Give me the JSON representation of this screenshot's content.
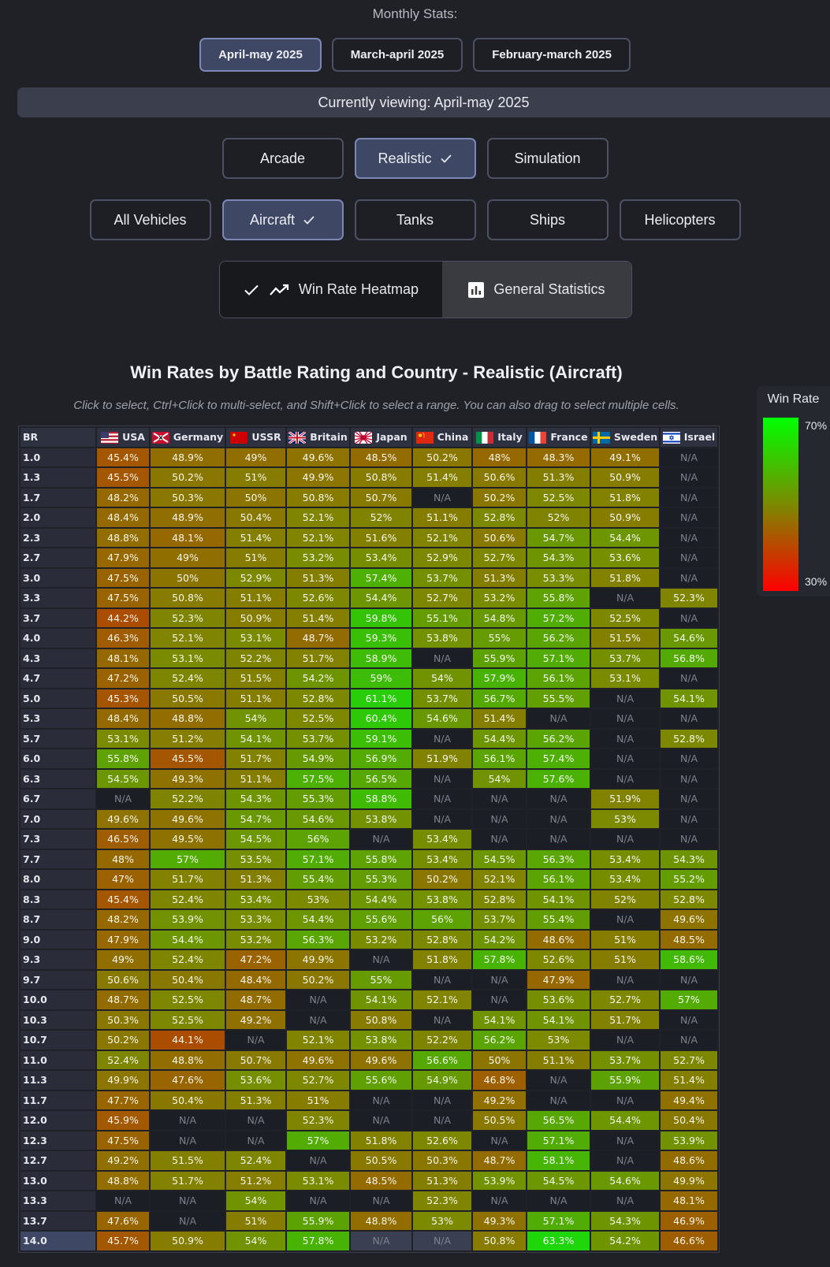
{
  "monthly": {
    "title": "Monthly Stats:",
    "buttons": [
      "April-may 2025",
      "March-april 2025",
      "February-march 2025"
    ],
    "active": 0
  },
  "viewing": "Currently viewing: April-may 2025",
  "modes": {
    "items": [
      "Arcade",
      "Realistic",
      "Simulation"
    ],
    "active": 1
  },
  "vehicle_types": {
    "items": [
      "All Vehicles",
      "Aircraft",
      "Tanks",
      "Ships",
      "Helicopters"
    ],
    "active": 1
  },
  "views": {
    "heatmap": "Win Rate Heatmap",
    "general": "General Statistics"
  },
  "chart_title": "Win Rates by Battle Rating and Country - Realistic (Aircraft)",
  "hint": "Click to select, Ctrl+Click to multi-select, and Shift+Click to select a range. You can also drag to select multiple cells.",
  "legend": {
    "title": "Win Rate",
    "max": "70%",
    "min": "30%"
  },
  "colors": {
    "accent": "#3e4763",
    "low": "#ff0000",
    "mid": "#7b8a00",
    "high": "#00ff00"
  },
  "chart_data": {
    "type": "heatmap",
    "row_header": "BR",
    "countries": [
      "USA",
      "Germany",
      "USSR",
      "Britain",
      "Japan",
      "China",
      "Italy",
      "France",
      "Sweden",
      "Israel"
    ],
    "flags": [
      "us-flag-icon",
      "germany-flag-icon",
      "ussr-flag-icon",
      "uk-flag-icon",
      "japan-flag-icon",
      "china-flag-icon",
      "italy-flag-icon",
      "france-flag-icon",
      "sweden-flag-icon",
      "israel-flag-icon"
    ],
    "scale": [
      30,
      70
    ],
    "rows": [
      {
        "br": "1.0",
        "values": [
          45.4,
          48.9,
          49,
          49.6,
          48.5,
          50.2,
          48,
          48.3,
          49.1,
          null
        ]
      },
      {
        "br": "1.3",
        "values": [
          45.5,
          50.2,
          51,
          49.9,
          50.8,
          51.4,
          50.6,
          51.3,
          50.9,
          null
        ]
      },
      {
        "br": "1.7",
        "values": [
          48.2,
          50.3,
          50,
          50.8,
          50.7,
          null,
          50.2,
          52.5,
          51.8,
          null
        ]
      },
      {
        "br": "2.0",
        "values": [
          48.4,
          48.9,
          50.4,
          52.1,
          52,
          51.1,
          52.8,
          52,
          50.9,
          null
        ]
      },
      {
        "br": "2.3",
        "values": [
          48.8,
          48.1,
          51.4,
          52.1,
          51.6,
          52.1,
          50.6,
          54.7,
          54.4,
          null
        ]
      },
      {
        "br": "2.7",
        "values": [
          47.9,
          49,
          51,
          53.2,
          53.4,
          52.9,
          52.7,
          54.3,
          53.6,
          null
        ]
      },
      {
        "br": "3.0",
        "values": [
          47.5,
          50,
          52.9,
          51.3,
          57.4,
          53.7,
          51.3,
          53.3,
          51.8,
          null
        ]
      },
      {
        "br": "3.3",
        "values": [
          47.5,
          50.8,
          51.1,
          52.6,
          54.4,
          52.7,
          53.2,
          55.8,
          null,
          52.3
        ]
      },
      {
        "br": "3.7",
        "values": [
          44.2,
          52.3,
          50.9,
          51.4,
          59.8,
          55.1,
          54.8,
          57.2,
          52.5,
          null
        ]
      },
      {
        "br": "4.0",
        "values": [
          46.3,
          52.1,
          53.1,
          48.7,
          59.3,
          53.8,
          55,
          56.2,
          51.5,
          54.6
        ]
      },
      {
        "br": "4.3",
        "values": [
          48.1,
          53.1,
          52.2,
          51.7,
          58.9,
          null,
          55.9,
          57.1,
          53.7,
          56.8
        ]
      },
      {
        "br": "4.7",
        "values": [
          47.2,
          52.4,
          51.5,
          54.2,
          59,
          54,
          57.9,
          56.1,
          53.1,
          null
        ]
      },
      {
        "br": "5.0",
        "values": [
          45.3,
          50.5,
          51.1,
          52.8,
          61.1,
          53.7,
          56.7,
          55.5,
          null,
          54.1
        ]
      },
      {
        "br": "5.3",
        "values": [
          48.4,
          48.8,
          54,
          52.5,
          60.4,
          54.6,
          51.4,
          null,
          null,
          null
        ]
      },
      {
        "br": "5.7",
        "values": [
          53.1,
          51.2,
          54.1,
          53.7,
          59.1,
          null,
          54.4,
          56.2,
          null,
          52.8
        ]
      },
      {
        "br": "6.0",
        "values": [
          55.8,
          45.5,
          51.7,
          54.9,
          56.9,
          51.9,
          56.1,
          57.4,
          null,
          null
        ]
      },
      {
        "br": "6.3",
        "values": [
          54.5,
          49.3,
          51.1,
          57.5,
          56.5,
          null,
          54,
          57.6,
          null,
          null
        ]
      },
      {
        "br": "6.7",
        "values": [
          null,
          52.2,
          54.3,
          55.3,
          58.8,
          null,
          null,
          null,
          51.9,
          null
        ]
      },
      {
        "br": "7.0",
        "values": [
          49.6,
          49.6,
          54.7,
          54.6,
          53.8,
          null,
          null,
          null,
          53,
          null
        ]
      },
      {
        "br": "7.3",
        "values": [
          46.5,
          49.5,
          54.5,
          56,
          null,
          53.4,
          null,
          null,
          null,
          null
        ]
      },
      {
        "br": "7.7",
        "values": [
          48,
          57,
          53.5,
          57.1,
          55.8,
          53.4,
          54.5,
          56.3,
          53.4,
          54.3
        ]
      },
      {
        "br": "8.0",
        "values": [
          47,
          51.7,
          51.3,
          55.4,
          55.3,
          50.2,
          52.1,
          56.1,
          53.4,
          55.2
        ]
      },
      {
        "br": "8.3",
        "values": [
          45.4,
          52.4,
          53.4,
          53,
          54.4,
          53.8,
          52.8,
          54.1,
          52,
          52.8
        ]
      },
      {
        "br": "8.7",
        "values": [
          48.2,
          53.9,
          53.3,
          54.4,
          55.6,
          56,
          53.7,
          55.4,
          null,
          49.6
        ]
      },
      {
        "br": "9.0",
        "values": [
          47.9,
          54.4,
          53.2,
          56.3,
          53.2,
          52.8,
          54.2,
          48.6,
          51,
          48.5
        ]
      },
      {
        "br": "9.3",
        "values": [
          49,
          52.4,
          47.2,
          49.9,
          null,
          51.8,
          57.8,
          52.6,
          51,
          58.6
        ]
      },
      {
        "br": "9.7",
        "values": [
          50.6,
          50.4,
          48.4,
          50.2,
          55,
          null,
          null,
          47.9,
          null,
          null
        ]
      },
      {
        "br": "10.0",
        "values": [
          48.7,
          52.5,
          48.7,
          null,
          54.1,
          52.1,
          null,
          53.6,
          52.7,
          57
        ]
      },
      {
        "br": "10.3",
        "values": [
          50.3,
          52.5,
          49.2,
          null,
          50.8,
          null,
          54.1,
          54.1,
          51.7,
          null
        ]
      },
      {
        "br": "10.7",
        "values": [
          50.2,
          44.1,
          null,
          52.1,
          53.8,
          52.2,
          56.2,
          53,
          null,
          null
        ]
      },
      {
        "br": "11.0",
        "values": [
          52.4,
          48.8,
          50.7,
          49.6,
          49.6,
          56.6,
          50,
          51.1,
          53.7,
          52.7
        ]
      },
      {
        "br": "11.3",
        "values": [
          49.9,
          47.6,
          53.6,
          52.7,
          55.6,
          54.9,
          46.8,
          null,
          55.9,
          51.4
        ]
      },
      {
        "br": "11.7",
        "values": [
          47.7,
          50.4,
          51.3,
          51,
          null,
          null,
          49.2,
          null,
          null,
          49.4
        ]
      },
      {
        "br": "12.0",
        "values": [
          45.9,
          null,
          null,
          52.3,
          null,
          null,
          50.5,
          56.5,
          54.4,
          50.4
        ]
      },
      {
        "br": "12.3",
        "values": [
          47.5,
          null,
          null,
          57,
          51.8,
          52.6,
          null,
          57.1,
          null,
          53.9
        ]
      },
      {
        "br": "12.7",
        "values": [
          49.2,
          51.5,
          52.4,
          null,
          50.5,
          50.3,
          48.7,
          58.1,
          null,
          48.6
        ]
      },
      {
        "br": "13.0",
        "values": [
          48.8,
          51.7,
          51.2,
          53.1,
          48.5,
          51.3,
          53.9,
          54.5,
          54.6,
          49.9
        ]
      },
      {
        "br": "13.3",
        "values": [
          null,
          null,
          54,
          null,
          null,
          52.3,
          null,
          null,
          null,
          48.1
        ]
      },
      {
        "br": "13.7",
        "values": [
          47.6,
          null,
          51,
          55.9,
          48.8,
          53,
          49.3,
          57.1,
          54.3,
          46.9
        ]
      },
      {
        "br": "14.0",
        "values": [
          45.7,
          50.9,
          54,
          57.8,
          null,
          null,
          50.8,
          63.3,
          54.2,
          46.6
        ]
      }
    ],
    "na_label": "N/A"
  }
}
